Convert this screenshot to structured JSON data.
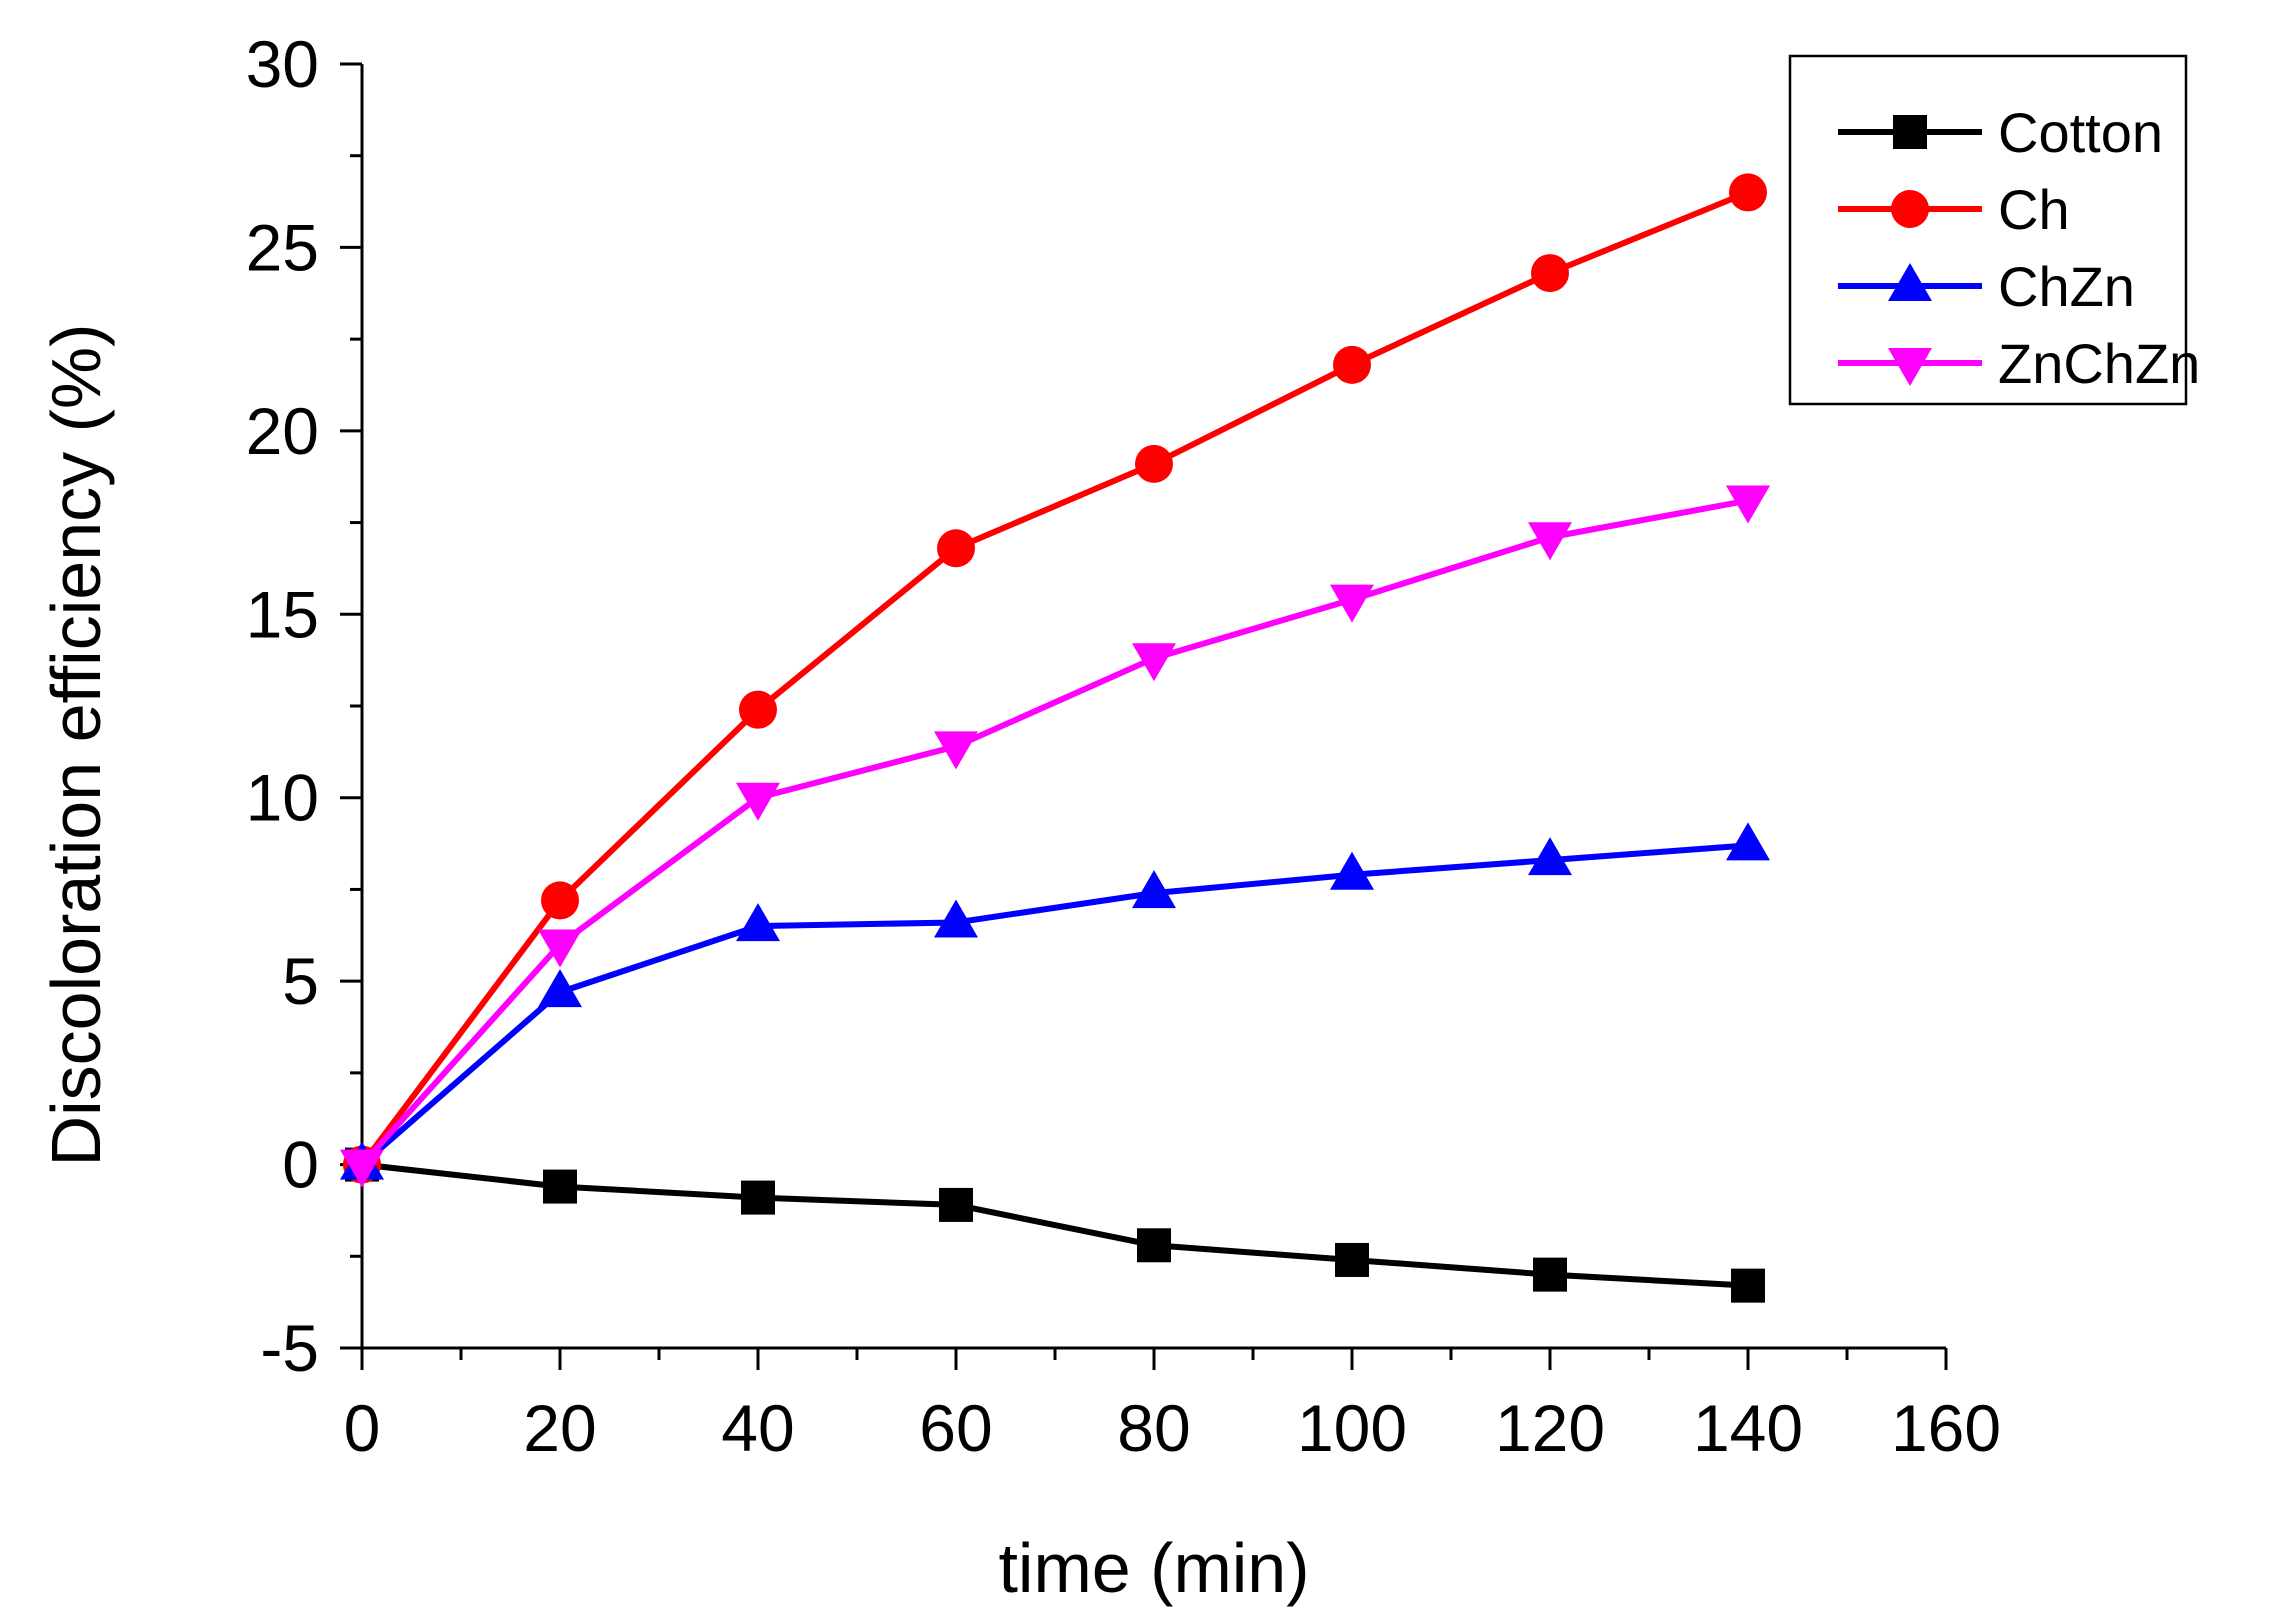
{
  "chart_data": {
    "type": "line",
    "title": "",
    "xlabel": "time (min)",
    "ylabel": "Discoloration efficiency (%)",
    "xlim": [
      0,
      160
    ],
    "ylim": [
      -5,
      30
    ],
    "xticks": [
      0,
      20,
      40,
      60,
      80,
      100,
      120,
      140,
      160
    ],
    "yticks": [
      -5,
      0,
      5,
      10,
      15,
      20,
      25,
      30
    ],
    "grid": false,
    "legend_position": "top-right",
    "x": [
      0,
      20,
      40,
      60,
      80,
      100,
      120,
      140
    ],
    "series": [
      {
        "name": "Cotton",
        "color": "#000000",
        "marker": "square",
        "values": [
          0,
          -0.6,
          -0.9,
          -1.1,
          -2.2,
          -2.6,
          -3.0,
          -3.3
        ]
      },
      {
        "name": "Ch",
        "color": "#ff0000",
        "marker": "circle",
        "values": [
          0,
          7.2,
          12.4,
          16.8,
          19.1,
          21.8,
          24.3,
          26.5
        ]
      },
      {
        "name": "ChZn",
        "color": "#0000ff",
        "marker": "triangle-up",
        "values": [
          0,
          4.7,
          6.5,
          6.6,
          7.4,
          7.9,
          8.3,
          8.7
        ]
      },
      {
        "name": "ZnChZn",
        "color": "#ff00ff",
        "marker": "triangle-down",
        "values": [
          0,
          6.0,
          10.0,
          11.4,
          13.8,
          15.4,
          17.1,
          18.1
        ]
      }
    ]
  }
}
